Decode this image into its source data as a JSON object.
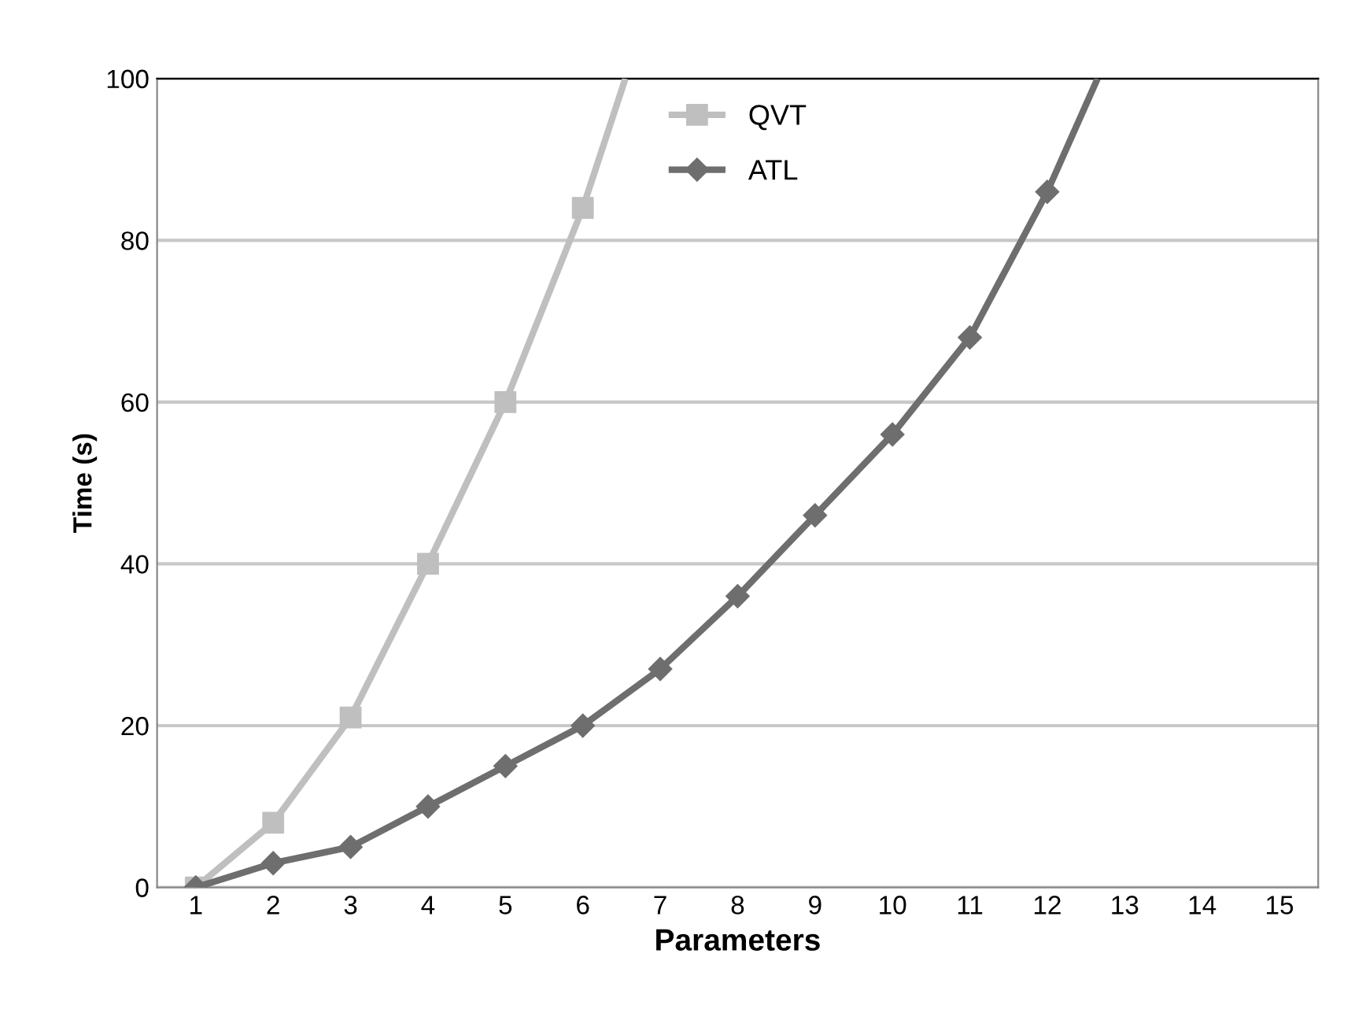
{
  "chart_data": {
    "type": "line",
    "xlabel": "Parameters",
    "ylabel": "Time (s)",
    "xlim": [
      0.5,
      15.5
    ],
    "xticks": [
      1,
      2,
      3,
      4,
      5,
      6,
      7,
      8,
      9,
      10,
      11,
      12,
      13,
      14,
      15
    ],
    "series": [
      {
        "name": "QVT",
        "color": "#bfbfbf",
        "marker": "square",
        "x": [
          1,
          2,
          3,
          4,
          5,
          6
        ],
        "values": [
          0,
          8,
          21,
          40,
          60,
          84
        ]
      },
      {
        "color": "#bfbfbf",
        "marker": "none",
        "x": [
          6,
          6.55
        ],
        "values": [
          84,
          100
        ]
      },
      {
        "name": "ATL",
        "color": "#6e6e6e",
        "marker": "diamond",
        "x": [
          1,
          2,
          3,
          4,
          5,
          6,
          7,
          8,
          9,
          10,
          11,
          12
        ],
        "values": [
          0,
          3,
          5,
          10,
          15,
          20,
          27,
          36,
          46,
          56,
          68,
          86
        ]
      },
      {
        "color": "#6e6e6e",
        "marker": "none",
        "x": [
          12,
          12.65
        ],
        "values": [
          86,
          100
        ]
      }
    ],
    "ylim": [
      0,
      100
    ],
    "yticks": [
      0,
      20,
      40,
      60,
      80,
      100
    ],
    "grid": "y",
    "legend": "top",
    "line_style": "solid"
  }
}
